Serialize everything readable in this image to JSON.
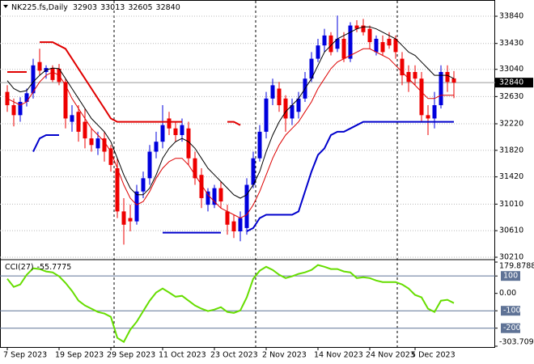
{
  "chart_data": [
    {
      "type": "candlestick",
      "title": "NK225.fs,Daily",
      "categories": [
        "7 Sep 2023",
        null,
        null,
        null,
        null,
        null,
        null,
        null,
        "19 Sep 2023",
        null,
        null,
        null,
        null,
        null,
        null,
        null,
        "29 Sep 2023",
        null,
        null,
        null,
        null,
        null,
        null,
        null,
        "11 Oct 2023",
        null,
        null,
        null,
        null,
        null,
        null,
        null,
        "23 Oct 2023",
        null,
        null,
        null,
        null,
        null,
        null,
        null,
        "2 Nov 2023",
        null,
        null,
        null,
        null,
        null,
        null,
        null,
        "14 Nov 2023",
        null,
        null,
        null,
        null,
        null,
        null,
        null,
        "24 Nov 2023",
        null,
        null,
        null,
        null,
        null,
        null,
        "5 Dec 2023",
        null,
        null,
        null,
        null,
        null,
        null
      ],
      "open": [
        32700,
        32500,
        32350,
        32550,
        32680,
        33150,
        33000,
        33060,
        33050,
        32850,
        32250,
        32400,
        32250,
        32000,
        31850,
        32000,
        31850,
        31550,
        30900,
        30800,
        30750,
        31200,
        31400,
        31800,
        31950,
        32300,
        32150,
        32050,
        32150,
        31700,
        31450,
        31000,
        31000,
        31250,
        30900,
        30750,
        30600,
        30650,
        31300,
        31700,
        32100,
        32600,
        32750,
        32600,
        32300,
        32400,
        32600,
        32900,
        33200,
        33400,
        33550,
        33350,
        33500,
        33200,
        33700,
        33700,
        33650,
        33300,
        33450,
        33500,
        33500,
        33200,
        33000,
        33000,
        32900,
        32350,
        32300,
        32500,
        33000,
        32903
      ],
      "high": [
        32800,
        32600,
        32620,
        32750,
        33200,
        33350,
        33100,
        33100,
        33120,
        32900,
        32500,
        32500,
        32450,
        32150,
        32100,
        32100,
        31900,
        31700,
        31100,
        31000,
        31300,
        31500,
        31900,
        32100,
        32500,
        32400,
        32250,
        32300,
        32250,
        31800,
        31550,
        31250,
        31300,
        31350,
        31000,
        30850,
        30900,
        31400,
        31800,
        32200,
        32700,
        32900,
        32850,
        32650,
        32600,
        32700,
        33000,
        33300,
        33500,
        33650,
        33600,
        33850,
        33600,
        33750,
        33780,
        33800,
        33700,
        33550,
        33550,
        33600,
        33550,
        33300,
        33100,
        33100,
        33000,
        32500,
        32700,
        33100,
        33100,
        33013
      ],
      "low": [
        32400,
        32180,
        32250,
        32480,
        32600,
        32950,
        32900,
        32850,
        32800,
        32150,
        32100,
        31950,
        31850,
        31800,
        31750,
        31650,
        31500,
        30800,
        30400,
        30600,
        30700,
        31100,
        31300,
        31700,
        31850,
        32050,
        31950,
        31950,
        31600,
        31300,
        30950,
        30900,
        30950,
        30950,
        30550,
        30500,
        30450,
        30550,
        31250,
        31650,
        32000,
        32500,
        32400,
        32100,
        32200,
        32300,
        32550,
        32850,
        33150,
        33300,
        33250,
        33300,
        33150,
        33150,
        33600,
        33550,
        33350,
        33250,
        33250,
        33350,
        33200,
        32800,
        32700,
        32800,
        32250,
        32050,
        32150,
        32450,
        32700,
        32605
      ],
      "close": [
        32500,
        32350,
        32550,
        32680,
        33100,
        33020,
        33060,
        32880,
        32850,
        32300,
        32350,
        32100,
        32000,
        31900,
        32000,
        31800,
        31600,
        30900,
        30700,
        30750,
        31200,
        31400,
        31800,
        31950,
        32200,
        32150,
        32050,
        32200,
        31700,
        31400,
        31100,
        31200,
        31250,
        31050,
        30700,
        30600,
        30800,
        31300,
        31700,
        32100,
        32600,
        32800,
        32500,
        32300,
        32500,
        32600,
        32900,
        33200,
        33400,
        33550,
        33300,
        33500,
        33200,
        33700,
        33650,
        33600,
        33450,
        33500,
        33300,
        33400,
        33300,
        32950,
        32850,
        32900,
        32350,
        32300,
        32500,
        33000,
        32850,
        32840
      ],
      "up_color": "#0000dd",
      "down_color": "#ee0000",
      "overlays": [
        {
          "color": "#000000",
          "width": 1,
          "values": [
            32870,
            32750,
            32700,
            32720,
            32850,
            32950,
            33030,
            33060,
            33050,
            32900,
            32750,
            32600,
            32450,
            32300,
            32200,
            32100,
            31950,
            31700,
            31450,
            31250,
            31150,
            31150,
            31250,
            31450,
            31700,
            31850,
            31950,
            32000,
            31950,
            31850,
            31700,
            31550,
            31450,
            31350,
            31250,
            31150,
            31100,
            31150,
            31300,
            31500,
            31800,
            32050,
            32250,
            32400,
            32500,
            32600,
            32750,
            32900,
            33100,
            33300,
            33400,
            33500,
            33550,
            33600,
            33650,
            33680,
            33680,
            33650,
            33600,
            33550,
            33500,
            33400,
            33300,
            33250,
            33150,
            33050,
            32950,
            32950,
            32950,
            32900
          ]
        },
        {
          "color": "#dd0000",
          "width": 1,
          "values": [
            32600,
            32550,
            32500,
            32550,
            32700,
            32850,
            32950,
            33000,
            32950,
            32800,
            32600,
            32450,
            32300,
            32150,
            32050,
            31950,
            31800,
            31550,
            31300,
            31100,
            31000,
            31050,
            31200,
            31400,
            31550,
            31650,
            31700,
            31700,
            31600,
            31450,
            31300,
            31150,
            31050,
            30950,
            30900,
            30850,
            30800,
            30850,
            31000,
            31200,
            31450,
            31700,
            31900,
            32050,
            32150,
            32250,
            32400,
            32550,
            32750,
            32900,
            33050,
            33150,
            33200,
            33250,
            33300,
            33350,
            33350,
            33300,
            33250,
            33200,
            33100,
            33000,
            32900,
            32800,
            32700,
            32600,
            32600,
            32650,
            32650,
            32650
          ]
        },
        {
          "color": "#e00000",
          "width": 2,
          "values": [
            33000,
            33000,
            33000,
            33000,
            null,
            33450,
            33450,
            33450,
            33400,
            33350,
            33200,
            33050,
            32900,
            32750,
            32600,
            32450,
            32300,
            32250,
            32250,
            32250,
            32250,
            32250,
            32250,
            32250,
            32250,
            32250,
            32250,
            32250,
            null,
            null,
            null,
            null,
            null,
            null,
            32250,
            32250,
            32200,
            null,
            null,
            null,
            null,
            null,
            null,
            null,
            null,
            null,
            null,
            null,
            null,
            null,
            null,
            null,
            null,
            null,
            null,
            null,
            null,
            null,
            null,
            null,
            null,
            null,
            null,
            null,
            null,
            null,
            null,
            null,
            null,
            null
          ]
        },
        {
          "color": "#0000cc",
          "width": 2,
          "values": [
            null,
            null,
            null,
            null,
            31800,
            32000,
            32050,
            32050,
            32050,
            null,
            null,
            null,
            null,
            null,
            null,
            null,
            null,
            null,
            null,
            null,
            null,
            null,
            null,
            null,
            30580,
            30580,
            30580,
            30580,
            30580,
            30580,
            30580,
            30580,
            30580,
            30580,
            null,
            null,
            null,
            30600,
            30650,
            30800,
            30850,
            30850,
            30850,
            30850,
            30850,
            30900,
            31200,
            31500,
            31750,
            31850,
            32050,
            32100,
            32100,
            32150,
            32200,
            32250,
            32250,
            32250,
            32250,
            32250,
            32250,
            32250,
            32250,
            32250,
            32250,
            32250,
            32250,
            32250,
            32250,
            32250
          ]
        }
      ],
      "ylim": [
        30210,
        34060
      ],
      "yticks": [
        30210,
        30610,
        31010,
        31420,
        31820,
        32220,
        32630,
        33040,
        33430,
        33840
      ],
      "grid": true
    },
    {
      "type": "line",
      "title": "CCI(27)",
      "color": "#66dd00",
      "values": [
        84,
        37,
        51,
        107,
        144,
        140,
        126,
        121,
        98,
        60,
        14,
        -42,
        -70,
        -88,
        -107,
        -116,
        -135,
        -256,
        -279,
        -209,
        -163,
        -102,
        -42,
        5,
        28,
        5,
        -19,
        -14,
        -42,
        -70,
        -88,
        -102,
        -93,
        -79,
        -107,
        -112,
        -98,
        -23,
        84,
        130,
        153,
        135,
        107,
        88,
        98,
        112,
        121,
        135,
        163,
        153,
        140,
        140,
        126,
        121,
        88,
        93,
        88,
        74,
        65,
        65,
        65,
        51,
        28,
        -9,
        -23,
        -88,
        -107,
        -42,
        -37,
        -55.7775
      ],
      "ylim": [
        -303.709,
        179.8788
      ],
      "yticks": [
        179.8788,
        100,
        {
          "value": 0,
          "label": "0.00"
        },
        -100,
        -200,
        -303.709
      ],
      "levels": [
        100,
        -100,
        -200
      ],
      "level_color": "#5f7396"
    }
  ]
}
